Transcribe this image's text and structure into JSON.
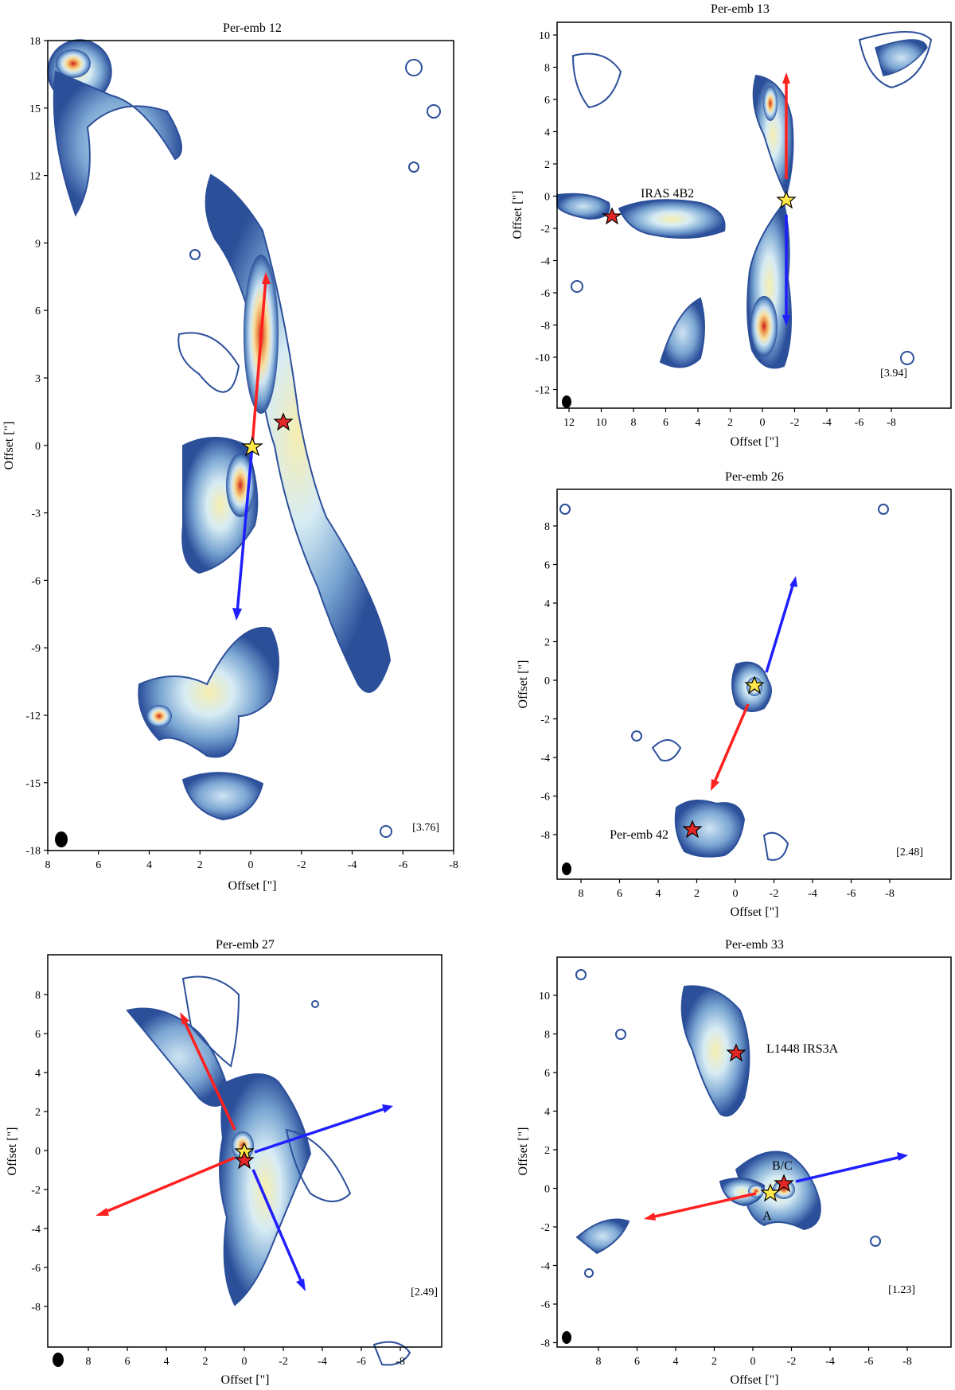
{
  "figure": {
    "panels": [
      {
        "id": "p12",
        "title": "Per-emb 12",
        "xlabel": "Offset [\"]",
        "ylabel": "Offset [\"]",
        "xticks": [
          "8",
          "6",
          "4",
          "2",
          "0",
          "-2",
          "-4",
          "-6",
          "-8"
        ],
        "yticks": [
          "18",
          "15",
          "12",
          "9",
          "6",
          "3",
          "0",
          "-3",
          "-6",
          "-9",
          "-12",
          "-15",
          "-18"
        ],
        "ratio_label": "[3.76]",
        "annotations": []
      },
      {
        "id": "p13",
        "title": "Per-emb 13",
        "xlabel": "Offset [\"]",
        "ylabel": "Offset [\"]",
        "xticks": [
          "12",
          "10",
          "8",
          "6",
          "4",
          "2",
          "0",
          "-2",
          "-4",
          "-6",
          "-8"
        ],
        "yticks": [
          "10",
          "8",
          "6",
          "4",
          "2",
          "0",
          "-2",
          "-4",
          "-6",
          "-8",
          "-10",
          "-12"
        ],
        "ratio_label": "[3.94]",
        "annotations": [
          "IRAS 4B2"
        ]
      },
      {
        "id": "p26",
        "title": "Per-emb 26",
        "xlabel": "Offset [\"]",
        "ylabel": "Offset [\"]",
        "xticks": [
          "8",
          "6",
          "4",
          "2",
          "0",
          "-2",
          "-4",
          "-6",
          "-8"
        ],
        "yticks": [
          "8",
          "6",
          "4",
          "2",
          "0",
          "-2",
          "-4",
          "-6",
          "-8"
        ],
        "ratio_label": "[2.48]",
        "annotations": [
          "Per-emb 42"
        ]
      },
      {
        "id": "p27",
        "title": "Per-emb 27",
        "xlabel": "Offset [\"]",
        "ylabel": "Offset [\"]",
        "xticks": [
          "8",
          "6",
          "4",
          "2",
          "0",
          "-2",
          "-4",
          "-6",
          "-8"
        ],
        "yticks": [
          "8",
          "6",
          "4",
          "2",
          "0",
          "-2",
          "-4",
          "-6",
          "-8"
        ],
        "ratio_label": "[2.49]",
        "annotations": []
      },
      {
        "id": "p33",
        "title": "Per-emb 33",
        "xlabel": "Offset [\"]",
        "ylabel": "Offset [\"]",
        "xticks": [
          "8",
          "6",
          "4",
          "2",
          "0",
          "-2",
          "-4",
          "-6",
          "-8"
        ],
        "yticks": [
          "10",
          "8",
          "6",
          "4",
          "2",
          "0",
          "-2",
          "-4",
          "-6",
          "-8"
        ],
        "ratio_label": "[1.23]",
        "annotations": [
          "L1448 IRS3A",
          "B/C",
          "A"
        ]
      }
    ],
    "colors": {
      "contour": "#2c4f9a",
      "emission_low": "#cfe4f3",
      "emission_mid": "#f6e2a6",
      "emission_high": "#c9201f",
      "redshifted_arrow": "#ff2020",
      "blueshifted_arrow": "#1f1fff",
      "primary_star": "#ffe84a",
      "companion_star": "#e32727"
    }
  },
  "chart_data": [
    {
      "type": "contour",
      "title": "Per-emb 12",
      "xlabel": "Offset [\"]",
      "ylabel": "Offset [\"]",
      "xlim": [
        8,
        -8
      ],
      "ylim": [
        -18,
        18
      ],
      "primary_source": [
        0,
        0
      ],
      "companion_sources": [
        [
          -1.3,
          1.2
        ]
      ],
      "red_arrow": {
        "from": [
          0,
          0
        ],
        "to": [
          -0.7,
          7.8
        ]
      },
      "blue_arrow": {
        "from": [
          0,
          0
        ],
        "to": [
          0.8,
          -7.6
        ]
      },
      "ratio": "[3.76]"
    },
    {
      "type": "contour",
      "title": "Per-emb 13",
      "xlabel": "Offset [\"]",
      "ylabel": "Offset [\"]",
      "xlim": [
        14,
        -10
      ],
      "ylim": [
        -13,
        11
      ],
      "primary_source": [
        0,
        0
      ],
      "companion_sources": [
        [
          11,
          -1
        ]
      ],
      "companion_labels": [
        "IRAS 4B2"
      ],
      "red_arrow": {
        "from": [
          0,
          0.8
        ],
        "to": [
          0,
          7.6
        ]
      },
      "blue_arrow": {
        "from": [
          0,
          -0.8
        ],
        "to": [
          0,
          -7.9
        ]
      },
      "ratio": "[3.94]"
    },
    {
      "type": "contour",
      "title": "Per-emb 26",
      "xlabel": "Offset [\"]",
      "ylabel": "Offset [\"]",
      "xlim": [
        10,
        -10
      ],
      "ylim": [
        -10,
        10
      ],
      "primary_source": [
        0,
        0
      ],
      "companion_sources": [
        [
          3.1,
          -7.4
        ]
      ],
      "companion_labels": [
        "Per-emb 42"
      ],
      "red_arrow": {
        "from": [
          0.3,
          -1.2
        ],
        "to": [
          2.1,
          -5.5
        ]
      },
      "blue_arrow": {
        "from": [
          -0.4,
          1.0
        ],
        "to": [
          -2.2,
          5.5
        ]
      },
      "ratio": "[2.48]"
    },
    {
      "type": "contour",
      "title": "Per-emb 27",
      "xlabel": "Offset [\"]",
      "ylabel": "Offset [\"]",
      "xlim": [
        10,
        -10
      ],
      "ylim": [
        -10,
        10
      ],
      "primary_source": [
        0.1,
        0.1
      ],
      "companion_sources": [
        [
          0,
          -0.6
        ]
      ],
      "red_arrow_1": {
        "from": [
          1.1,
          1.1
        ],
        "to": [
          3.3,
          7.0
        ]
      },
      "red_arrow_2": {
        "from": [
          0.6,
          -0.8
        ],
        "to": [
          7.6,
          -3.3
        ]
      },
      "blue_arrow_1": {
        "from": [
          -1.0,
          -0.5
        ],
        "to": [
          -7.5,
          2.0
        ]
      },
      "blue_arrow_2": {
        "from": [
          -0.8,
          -1.1
        ],
        "to": [
          -3.2,
          -7.0
        ]
      },
      "ratio": "[2.49]"
    },
    {
      "type": "contour",
      "title": "Per-emb 33",
      "xlabel": "Offset [\"]",
      "ylabel": "Offset [\"]",
      "xlim": [
        10,
        -10
      ],
      "ylim": [
        -8,
        12
      ],
      "primary_source": [
        -0.8,
        -0.1
      ],
      "companion_sources": [
        [
          -1.5,
          0.4
        ],
        [
          0.8,
          7.1
        ]
      ],
      "companion_labels": [
        "B/C",
        "L1448 IRS3A"
      ],
      "red_arrow": {
        "from": [
          0,
          -0.2
        ],
        "to": [
          5.5,
          -1.5
        ]
      },
      "blue_arrow": {
        "from": [
          -2,
          0.5
        ],
        "to": [
          -7.8,
          1.9
        ]
      },
      "ratio": "[1.23]"
    }
  ]
}
